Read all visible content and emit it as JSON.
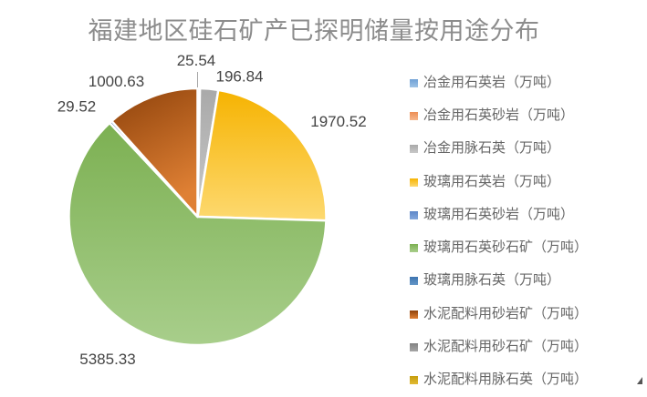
{
  "chart_data": {
    "type": "pie",
    "title": "福建地区硅石矿产已探明储量按用途分布",
    "unit": "万吨",
    "legend_position": "right",
    "label_color": "#444444",
    "title_color": "#8c8c8c",
    "slices": [
      {
        "label": "冶金用石英岩（万吨）",
        "value": 25.54,
        "color": "#6FA0D5",
        "color2": "#9EC3E6"
      },
      {
        "label": "冶金用石英砂岩（万吨）",
        "value": null,
        "color": "#EC8E55",
        "color2": "#F5B68C"
      },
      {
        "label": "冶金用脉石英（万吨）",
        "value": 196.84,
        "color": "#A9A9A9",
        "color2": "#C8C8C8"
      },
      {
        "label": "玻璃用石英岩（万吨）",
        "value": 1970.52,
        "color": "#F6B301",
        "color2": "#FDD970"
      },
      {
        "label": "玻璃用石英砂岩（万吨）",
        "value": null,
        "color": "#5D86C8",
        "color2": "#84A8DB"
      },
      {
        "label": "玻璃用石英砂石矿（万吨）",
        "value": 5385.33,
        "color": "#7CB052",
        "color2": "#A8CE8B"
      },
      {
        "label": "玻璃用脉石英（万吨）",
        "value": 29.52,
        "color": "#3E74B0",
        "color2": "#6497C7"
      },
      {
        "label": "水泥配料用砂岩矿（万吨）",
        "value": 1000.63,
        "color": "#8E420B",
        "color2": "#DF8034"
      },
      {
        "label": "水泥配料用砂石矿（万吨）",
        "value": null,
        "color": "#828282",
        "color2": "#A5A5A5"
      },
      {
        "label": "水泥配料用脉石英（万吨）",
        "value": null,
        "color": "#C59D0C",
        "color2": "#E2BB35"
      }
    ]
  }
}
